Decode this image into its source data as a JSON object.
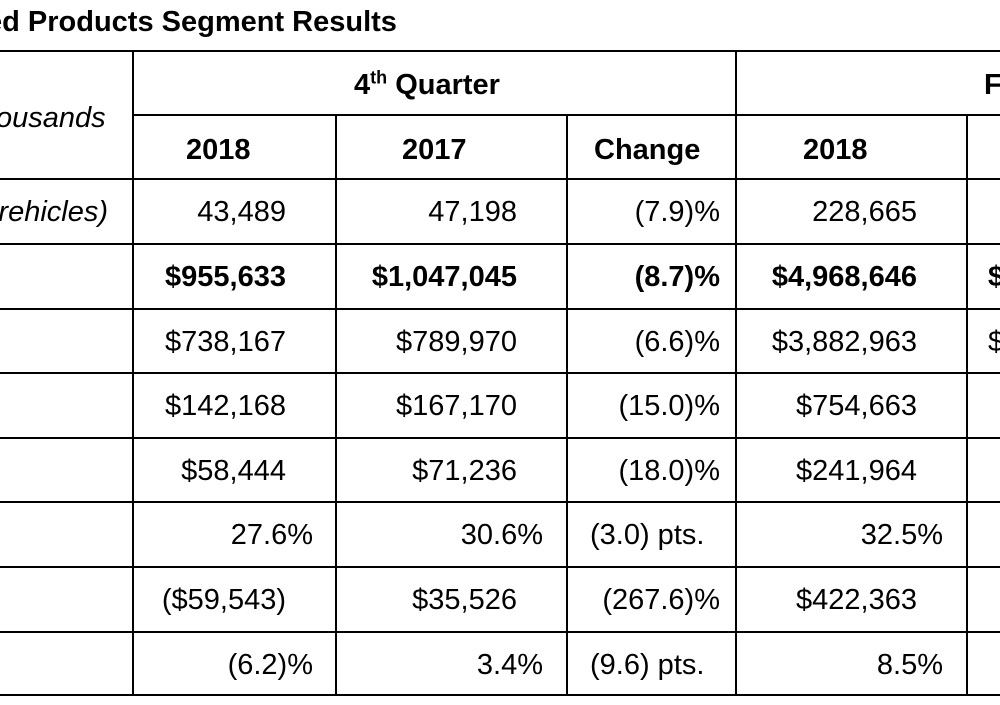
{
  "title": "ed Products Segment Results",
  "header": {
    "label_text": "ousands",
    "quarter_label": "4",
    "quarter_sup": "th",
    "quarter_rest": " Quarter",
    "fullyear_partial": "F",
    "years": [
      "2018",
      "2017"
    ],
    "change": "Change",
    "fy_2018": "2018"
  },
  "rows": [
    {
      "label": "rehicles)",
      "q2018": "43,489",
      "q2017": "47,198",
      "change": "(7.9)%",
      "fy2018": "228,665",
      "next": "",
      "bold": false
    },
    {
      "label": "",
      "q2018": "$955,633",
      "q2017": "$1,047,045",
      "change": "(8.7)%",
      "fy2018": "$4,968,646",
      "next": "$",
      "bold": true
    },
    {
      "label": "",
      "q2018": "$738,167",
      "q2017": "$789,970",
      "change": "(6.6)%",
      "fy2018": "$3,882,963",
      "next": "$",
      "bold": false
    },
    {
      "label": "",
      "q2018": "$142,168",
      "q2017": "$167,170",
      "change": "(15.0)%",
      "fy2018": "$754,663",
      "next": "",
      "bold": false
    },
    {
      "label": "",
      "q2018": "$58,444",
      "q2017": "$71,236",
      "change": "(18.0)%",
      "fy2018": "$241,964",
      "next": "",
      "bold": false
    },
    {
      "label": "",
      "q2018": "27.6%",
      "q2017": "30.6%",
      "change": "(3.0) pts.",
      "fy2018": "32.5%",
      "next": "",
      "bold": false
    },
    {
      "label": "",
      "q2018": "($59,543)",
      "q2017": "$35,526",
      "change": "(267.6)%",
      "fy2018": "$422,363",
      "next": "",
      "bold": false
    },
    {
      "label": "",
      "q2018": "(6.2)%",
      "q2017": "3.4%",
      "change": "(9.6) pts.",
      "fy2018": "8.5%",
      "next": "",
      "bold": false
    }
  ]
}
